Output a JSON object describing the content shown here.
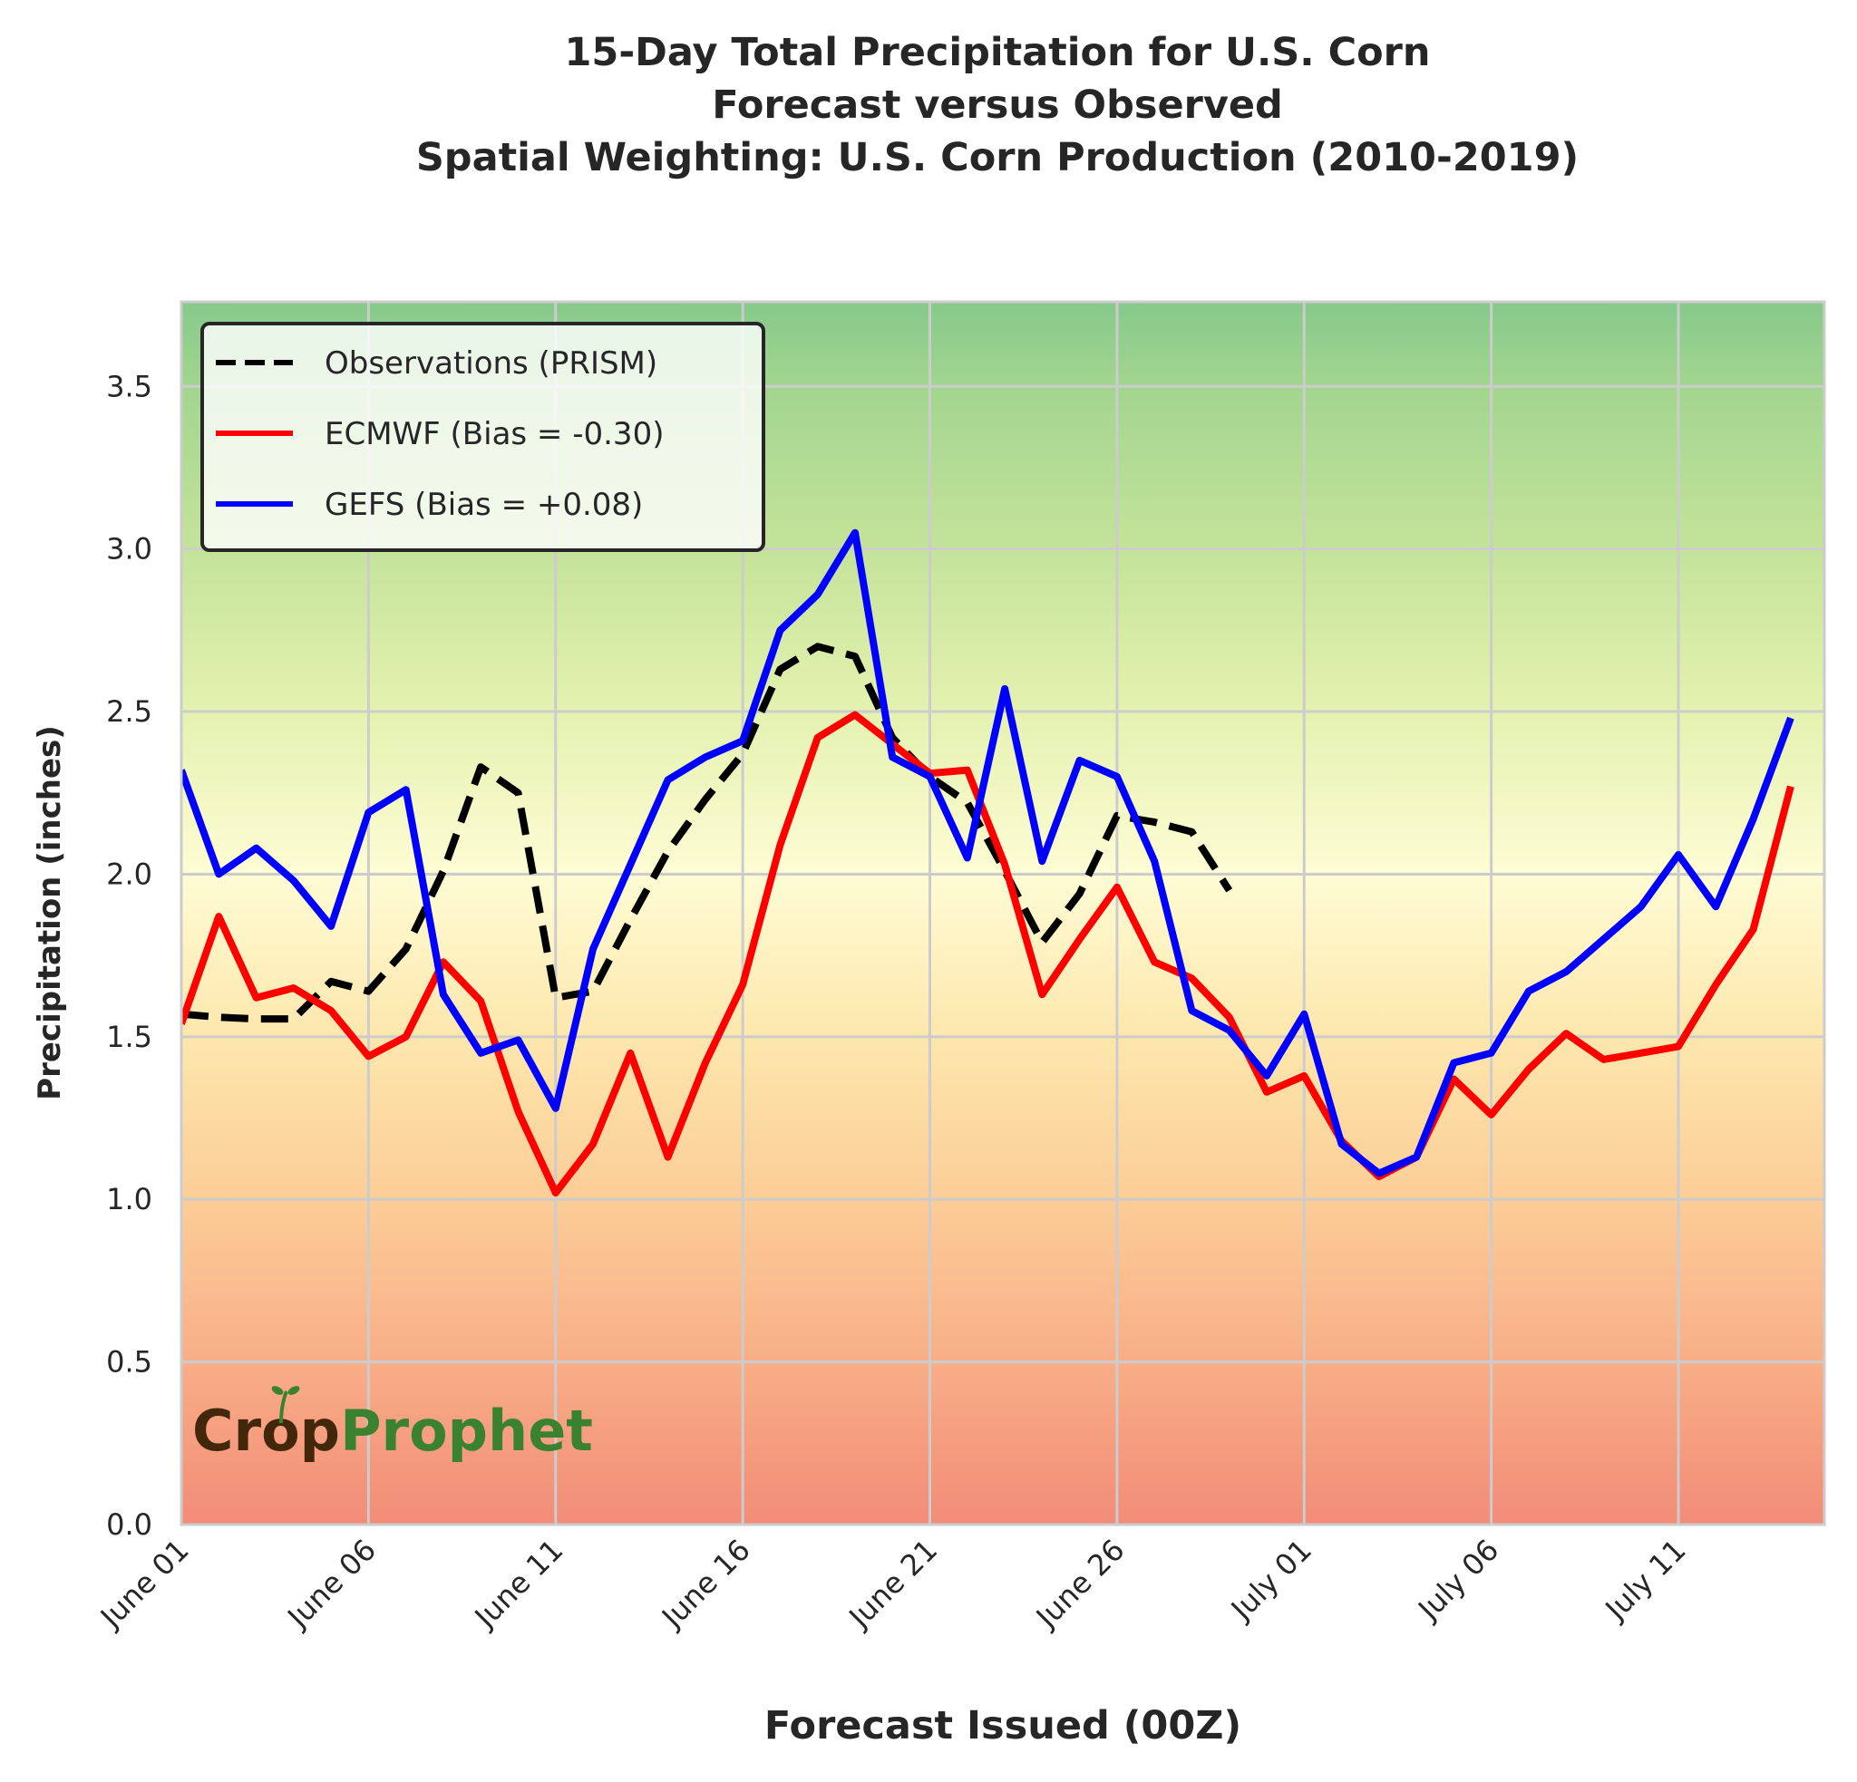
{
  "chart_data": {
    "type": "line",
    "title": [
      "15-Day Total Precipitation for U.S. Corn",
      "Forecast versus Observed",
      "Spatial Weighting: U.S. Corn Production (2010-2019)"
    ],
    "xlabel": "Forecast Issued (00Z)",
    "ylabel": "Precipitation (inches)",
    "ylim": [
      0,
      3.76
    ],
    "xlim_days_from_june_01": [
      0,
      43.9
    ],
    "grid": true,
    "legend_position": "top-left",
    "yticks": [
      0.0,
      0.5,
      1.0,
      1.5,
      2.0,
      2.5,
      3.0,
      3.5
    ],
    "ytick_labels": [
      "0.0",
      "0.5",
      "1.0",
      "1.5",
      "2.0",
      "2.5",
      "3.0",
      "3.5"
    ],
    "xticks_days": [
      0,
      5,
      10,
      15,
      20,
      25,
      30,
      35,
      40
    ],
    "xtick_labels": [
      "June 01",
      "June 06",
      "June 11",
      "June 16",
      "June 21",
      "June 26",
      "July 01",
      "July 06",
      "July 11"
    ],
    "background_gradient": {
      "description": "red-yellow-green vertical gradient (low = red, high = green)",
      "stops": [
        {
          "value": 0.0,
          "color": "#f28c78"
        },
        {
          "value": 0.5,
          "color": "#f8ae87"
        },
        {
          "value": 1.0,
          "color": "#fccd97"
        },
        {
          "value": 1.5,
          "color": "#fde7ad"
        },
        {
          "value": 2.0,
          "color": "#fefcd4"
        },
        {
          "value": 2.5,
          "color": "#e4f2b0"
        },
        {
          "value": 3.0,
          "color": "#c4e39a"
        },
        {
          "value": 3.5,
          "color": "#a2d58f"
        },
        {
          "value": 3.76,
          "color": "#86c98b"
        }
      ]
    },
    "series": [
      {
        "name": "Observations (PRISM)",
        "color": "#000000",
        "style": "dashed",
        "start_date": "June 01",
        "values": [
          1.57,
          1.56,
          1.555,
          1.555,
          1.67,
          1.64,
          1.77,
          2.01,
          2.33,
          2.25,
          1.62,
          1.64,
          1.86,
          2.07,
          2.23,
          2.37,
          2.63,
          2.7,
          2.67,
          2.42,
          2.3,
          2.22,
          2.01,
          1.79,
          1.94,
          2.18,
          2.16,
          2.13,
          1.95
        ]
      },
      {
        "name": "ECMWF (Bias = -0.30)",
        "color": "#ff0000",
        "style": "solid",
        "start_date": "June 01",
        "values": [
          1.54,
          1.87,
          1.62,
          1.65,
          1.58,
          1.44,
          1.5,
          1.73,
          1.61,
          1.27,
          1.02,
          1.17,
          1.45,
          1.13,
          1.42,
          1.66,
          2.09,
          2.42,
          2.49,
          2.4,
          2.31,
          2.32,
          2.03,
          1.63,
          1.8,
          1.96,
          1.73,
          1.68,
          1.56,
          1.33,
          1.38,
          1.18,
          1.07,
          1.13,
          1.37,
          1.26,
          1.4,
          1.51,
          1.43,
          1.45,
          1.47,
          1.66,
          1.83,
          2.27
        ]
      },
      {
        "name": "GEFS (Bias = +0.08)",
        "color": "#0000ff",
        "style": "solid",
        "start_date": "June 01",
        "values": [
          2.32,
          2.0,
          2.08,
          1.98,
          1.84,
          2.19,
          2.26,
          1.63,
          1.45,
          1.49,
          1.28,
          1.77,
          2.03,
          2.29,
          2.36,
          2.41,
          2.75,
          2.86,
          3.05,
          2.36,
          2.3,
          2.05,
          2.57,
          2.04,
          2.35,
          2.3,
          2.04,
          1.58,
          1.52,
          1.38,
          1.57,
          1.17,
          1.08,
          1.13,
          1.42,
          1.45,
          1.64,
          1.7,
          1.8,
          1.9,
          2.06,
          1.9,
          2.17,
          2.48
        ]
      }
    ],
    "legend": [
      {
        "label": "Observations (PRISM)",
        "color": "#000000",
        "style": "dashed"
      },
      {
        "label": "ECMWF (Bias = -0.30)",
        "color": "#ff0000",
        "style": "solid"
      },
      {
        "label": "GEFS (Bias = +0.08)",
        "color": "#0000ff",
        "style": "solid"
      }
    ]
  },
  "logo": {
    "part1": "Crop",
    "part2": "Prophet",
    "part1_color": "#43270b",
    "part2_color": "#3a8230",
    "icon": "sprout-icon"
  }
}
